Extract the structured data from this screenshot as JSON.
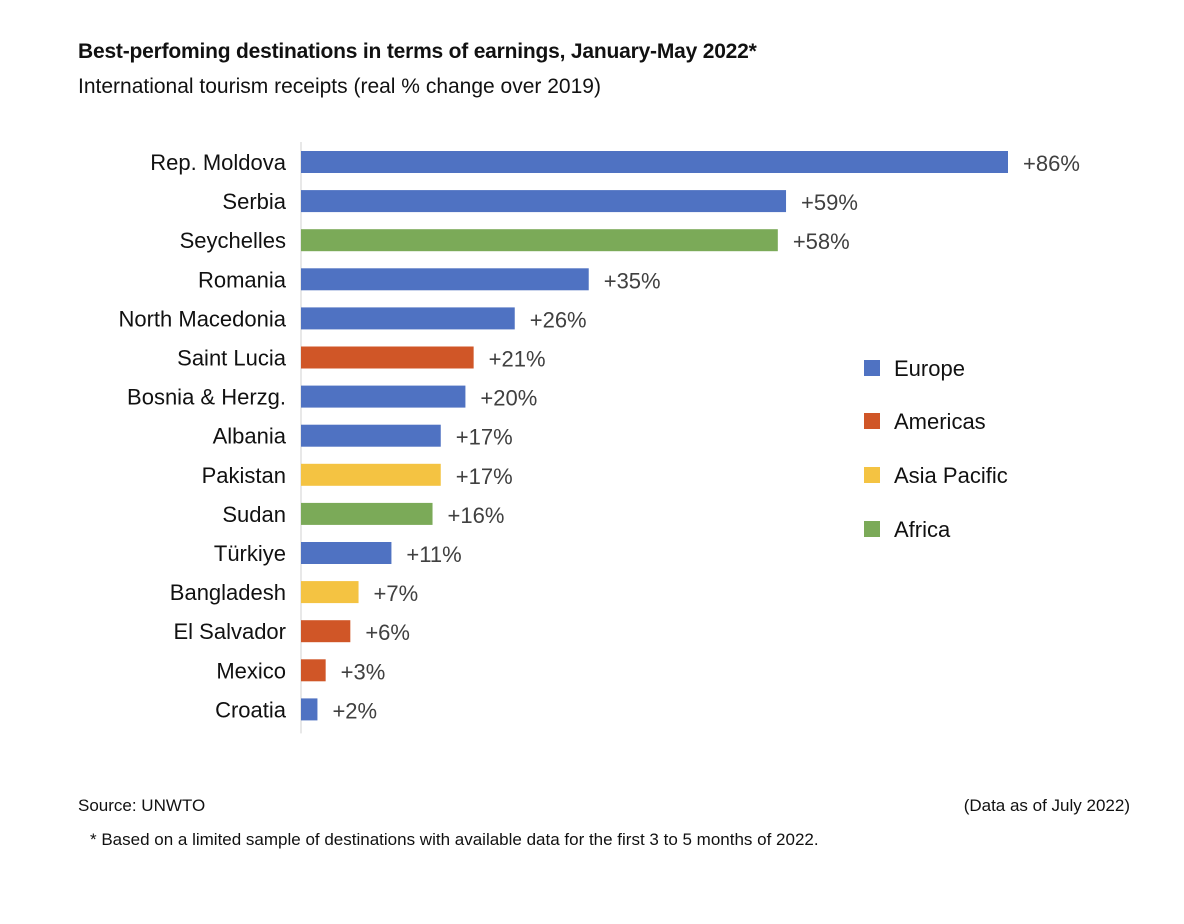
{
  "chart_data": {
    "type": "bar",
    "orientation": "horizontal",
    "title": "Best-perfoming destinations in terms of earnings, January-May 2022*",
    "subtitle": "International tourism receipts (real % change over 2019)",
    "categories": [
      "Rep. Moldova",
      "Serbia",
      "Seychelles",
      "Romania",
      "North Macedonia",
      "Saint Lucia",
      "Bosnia & Herzg.",
      "Albania",
      "Pakistan",
      "Sudan",
      "Türkiye",
      "Bangladesh",
      "El Salvador",
      "Mexico",
      "Croatia"
    ],
    "values": [
      86,
      59,
      58,
      35,
      26,
      21,
      20,
      17,
      17,
      16,
      11,
      7,
      6,
      3,
      2
    ],
    "value_labels": [
      "+86%",
      "+59%",
      "+58%",
      "+35%",
      "+26%",
      "+21%",
      "+20%",
      "+17%",
      "+17%",
      "+16%",
      "+11%",
      "+7%",
      "+6%",
      "+3%",
      "+2%"
    ],
    "regions": [
      "Europe",
      "Europe",
      "Africa",
      "Europe",
      "Europe",
      "Americas",
      "Europe",
      "Europe",
      "Asia Pacific",
      "Africa",
      "Europe",
      "Asia Pacific",
      "Americas",
      "Americas",
      "Europe"
    ],
    "legend": [
      {
        "name": "Europe",
        "color": "#4f72c2"
      },
      {
        "name": "Americas",
        "color": "#d05627"
      },
      {
        "name": "Asia Pacific",
        "color": "#f4c342"
      },
      {
        "name": "Africa",
        "color": "#7baa58"
      }
    ],
    "legend_position": "right",
    "xlim": [
      0,
      86
    ],
    "grid": false,
    "label_color": "#404040"
  },
  "footer": {
    "source": "Source: UNWTO",
    "as_of": "(Data as of July 2022)",
    "footnote": "* Based on a limited sample of destinations with available data for the first 3 to 5 months of 2022."
  }
}
